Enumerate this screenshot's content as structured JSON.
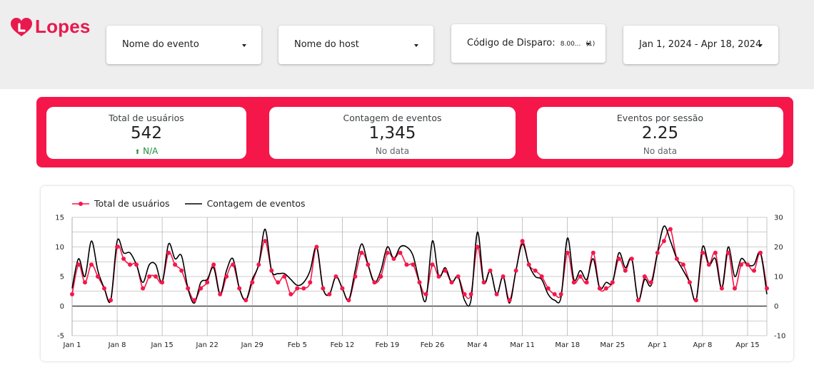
{
  "brand": {
    "name": "Lopes",
    "color": "#e8194d"
  },
  "filters": [
    {
      "label": "Nome do evento",
      "icon": "dropdown-caret-icon"
    },
    {
      "label": "Nome do host",
      "icon": "dropdown-caret-icon"
    },
    {
      "label": "Código de Disparo:",
      "value": "8.00...",
      "count": "(1)",
      "icon": "dropdown-caret-icon"
    },
    {
      "label": "Jan 1, 2024 - Apr 18, 2024",
      "icon": "dropdown-caret-icon"
    }
  ],
  "kpis": [
    {
      "label": "Total de usuários",
      "value": "542",
      "delta": "N/A",
      "delta_icon": "up-arrow-icon"
    },
    {
      "label": "Contagem de eventos",
      "value": "1,345",
      "delta": "No data"
    },
    {
      "label": "Eventos por sessão",
      "value": "2.25",
      "delta": "No data"
    }
  ],
  "colors": {
    "accent": "#f5174a",
    "series_users": "#f5174a",
    "series_events": "#000000",
    "positive": "#1e8e3e"
  },
  "chart_data": {
    "type": "line",
    "x_tick_labels": [
      "Jan 1",
      "Jan 8",
      "Jan 15",
      "Jan 22",
      "Jan 29",
      "Feb 5",
      "Feb 12",
      "Feb 19",
      "Feb 26",
      "Mar 4",
      "Mar 11",
      "Mar 18",
      "Mar 25",
      "Apr 1",
      "Apr 8",
      "Apr 15"
    ],
    "x": [
      "Jan 1",
      "Jan 2",
      "Jan 3",
      "Jan 4",
      "Jan 5",
      "Jan 6",
      "Jan 7",
      "Jan 8",
      "Jan 9",
      "Jan 10",
      "Jan 11",
      "Jan 12",
      "Jan 13",
      "Jan 14",
      "Jan 15",
      "Jan 16",
      "Jan 17",
      "Jan 18",
      "Jan 19",
      "Jan 20",
      "Jan 21",
      "Jan 22",
      "Jan 23",
      "Jan 24",
      "Jan 25",
      "Jan 26",
      "Jan 27",
      "Jan 28",
      "Jan 29",
      "Jan 30",
      "Jan 31",
      "Feb 1",
      "Feb 2",
      "Feb 3",
      "Feb 4",
      "Feb 5",
      "Feb 6",
      "Feb 7",
      "Feb 8",
      "Feb 9",
      "Feb 10",
      "Feb 11",
      "Feb 12",
      "Feb 13",
      "Feb 14",
      "Feb 15",
      "Feb 16",
      "Feb 17",
      "Feb 18",
      "Feb 19",
      "Feb 20",
      "Feb 21",
      "Feb 22",
      "Feb 23",
      "Feb 24",
      "Feb 25",
      "Feb 26",
      "Feb 27",
      "Feb 28",
      "Feb 29",
      "Mar 1",
      "Mar 2",
      "Mar 3",
      "Mar 4",
      "Mar 5",
      "Mar 6",
      "Mar 7",
      "Mar 8",
      "Mar 9",
      "Mar 10",
      "Mar 11",
      "Mar 12",
      "Mar 13",
      "Mar 14",
      "Mar 15",
      "Mar 16",
      "Mar 17",
      "Mar 18",
      "Mar 19",
      "Mar 20",
      "Mar 21",
      "Mar 22",
      "Mar 23",
      "Mar 24",
      "Mar 25",
      "Mar 26",
      "Mar 27",
      "Mar 28",
      "Mar 29",
      "Mar 30",
      "Mar 31",
      "Apr 1",
      "Apr 2",
      "Apr 3",
      "Apr 4",
      "Apr 5",
      "Apr 6",
      "Apr 7",
      "Apr 8",
      "Apr 9",
      "Apr 10",
      "Apr 11",
      "Apr 12",
      "Apr 13",
      "Apr 14",
      "Apr 15",
      "Apr 16",
      "Apr 17",
      "Apr 18"
    ],
    "series": [
      {
        "name": "Total de usuários",
        "axis": "left",
        "color": "#f5174a",
        "marker": "circle",
        "values": [
          2,
          7,
          4,
          7,
          5,
          3,
          1,
          10,
          8,
          7,
          7,
          3,
          5,
          5,
          4,
          9,
          7,
          6,
          3,
          1,
          3,
          4,
          7,
          2,
          5,
          7,
          3,
          1,
          4,
          7,
          11,
          6,
          4,
          5,
          2,
          3,
          3,
          4,
          10,
          3,
          2,
          5,
          3,
          1,
          5,
          9,
          7,
          4,
          5,
          9,
          8,
          9,
          7,
          7,
          4,
          2,
          7,
          5,
          6,
          4,
          5,
          2,
          2,
          10,
          4,
          6,
          2,
          5,
          1,
          6,
          11,
          7,
          6,
          5,
          3,
          2,
          2,
          9,
          4,
          5,
          4,
          9,
          3,
          3,
          4,
          8,
          6,
          8,
          1,
          5,
          4,
          9,
          11,
          13,
          8,
          7,
          4,
          1,
          9,
          7,
          9,
          3,
          9,
          3,
          7,
          7,
          6,
          9,
          3
        ]
      },
      {
        "name": "Contagem de eventos",
        "axis": "right",
        "color": "#000000",
        "marker": "none",
        "values": [
          6,
          16,
          10,
          22,
          12,
          6,
          2,
          22,
          18,
          18,
          14,
          8,
          14,
          14,
          8,
          21,
          16,
          17,
          6,
          1,
          8,
          9,
          13,
          4,
          12,
          16,
          6,
          2,
          9,
          14,
          26,
          12,
          11,
          11,
          9,
          7,
          8,
          12,
          20,
          6,
          4,
          10,
          6,
          2,
          12,
          21,
          14,
          8,
          12,
          20,
          16,
          20,
          20,
          17,
          8,
          2,
          22,
          10,
          13,
          8,
          10,
          2,
          2,
          25,
          8,
          12,
          4,
          10,
          1,
          12,
          21,
          14,
          10,
          9,
          4,
          2,
          3,
          23,
          9,
          12,
          9,
          16,
          6,
          8,
          8,
          18,
          13,
          16,
          2,
          9,
          7,
          18,
          27,
          22,
          16,
          12,
          8,
          2,
          20,
          14,
          16,
          6,
          20,
          10,
          16,
          14,
          14,
          18,
          4
        ]
      }
    ],
    "y_left": {
      "min": -5,
      "max": 15,
      "ticks": [
        -5,
        0,
        5,
        10,
        15
      ]
    },
    "y_right": {
      "min": -10,
      "max": 30,
      "ticks": [
        -10,
        0,
        10,
        20,
        30
      ]
    },
    "grid": true,
    "legend_position": "top-left"
  }
}
